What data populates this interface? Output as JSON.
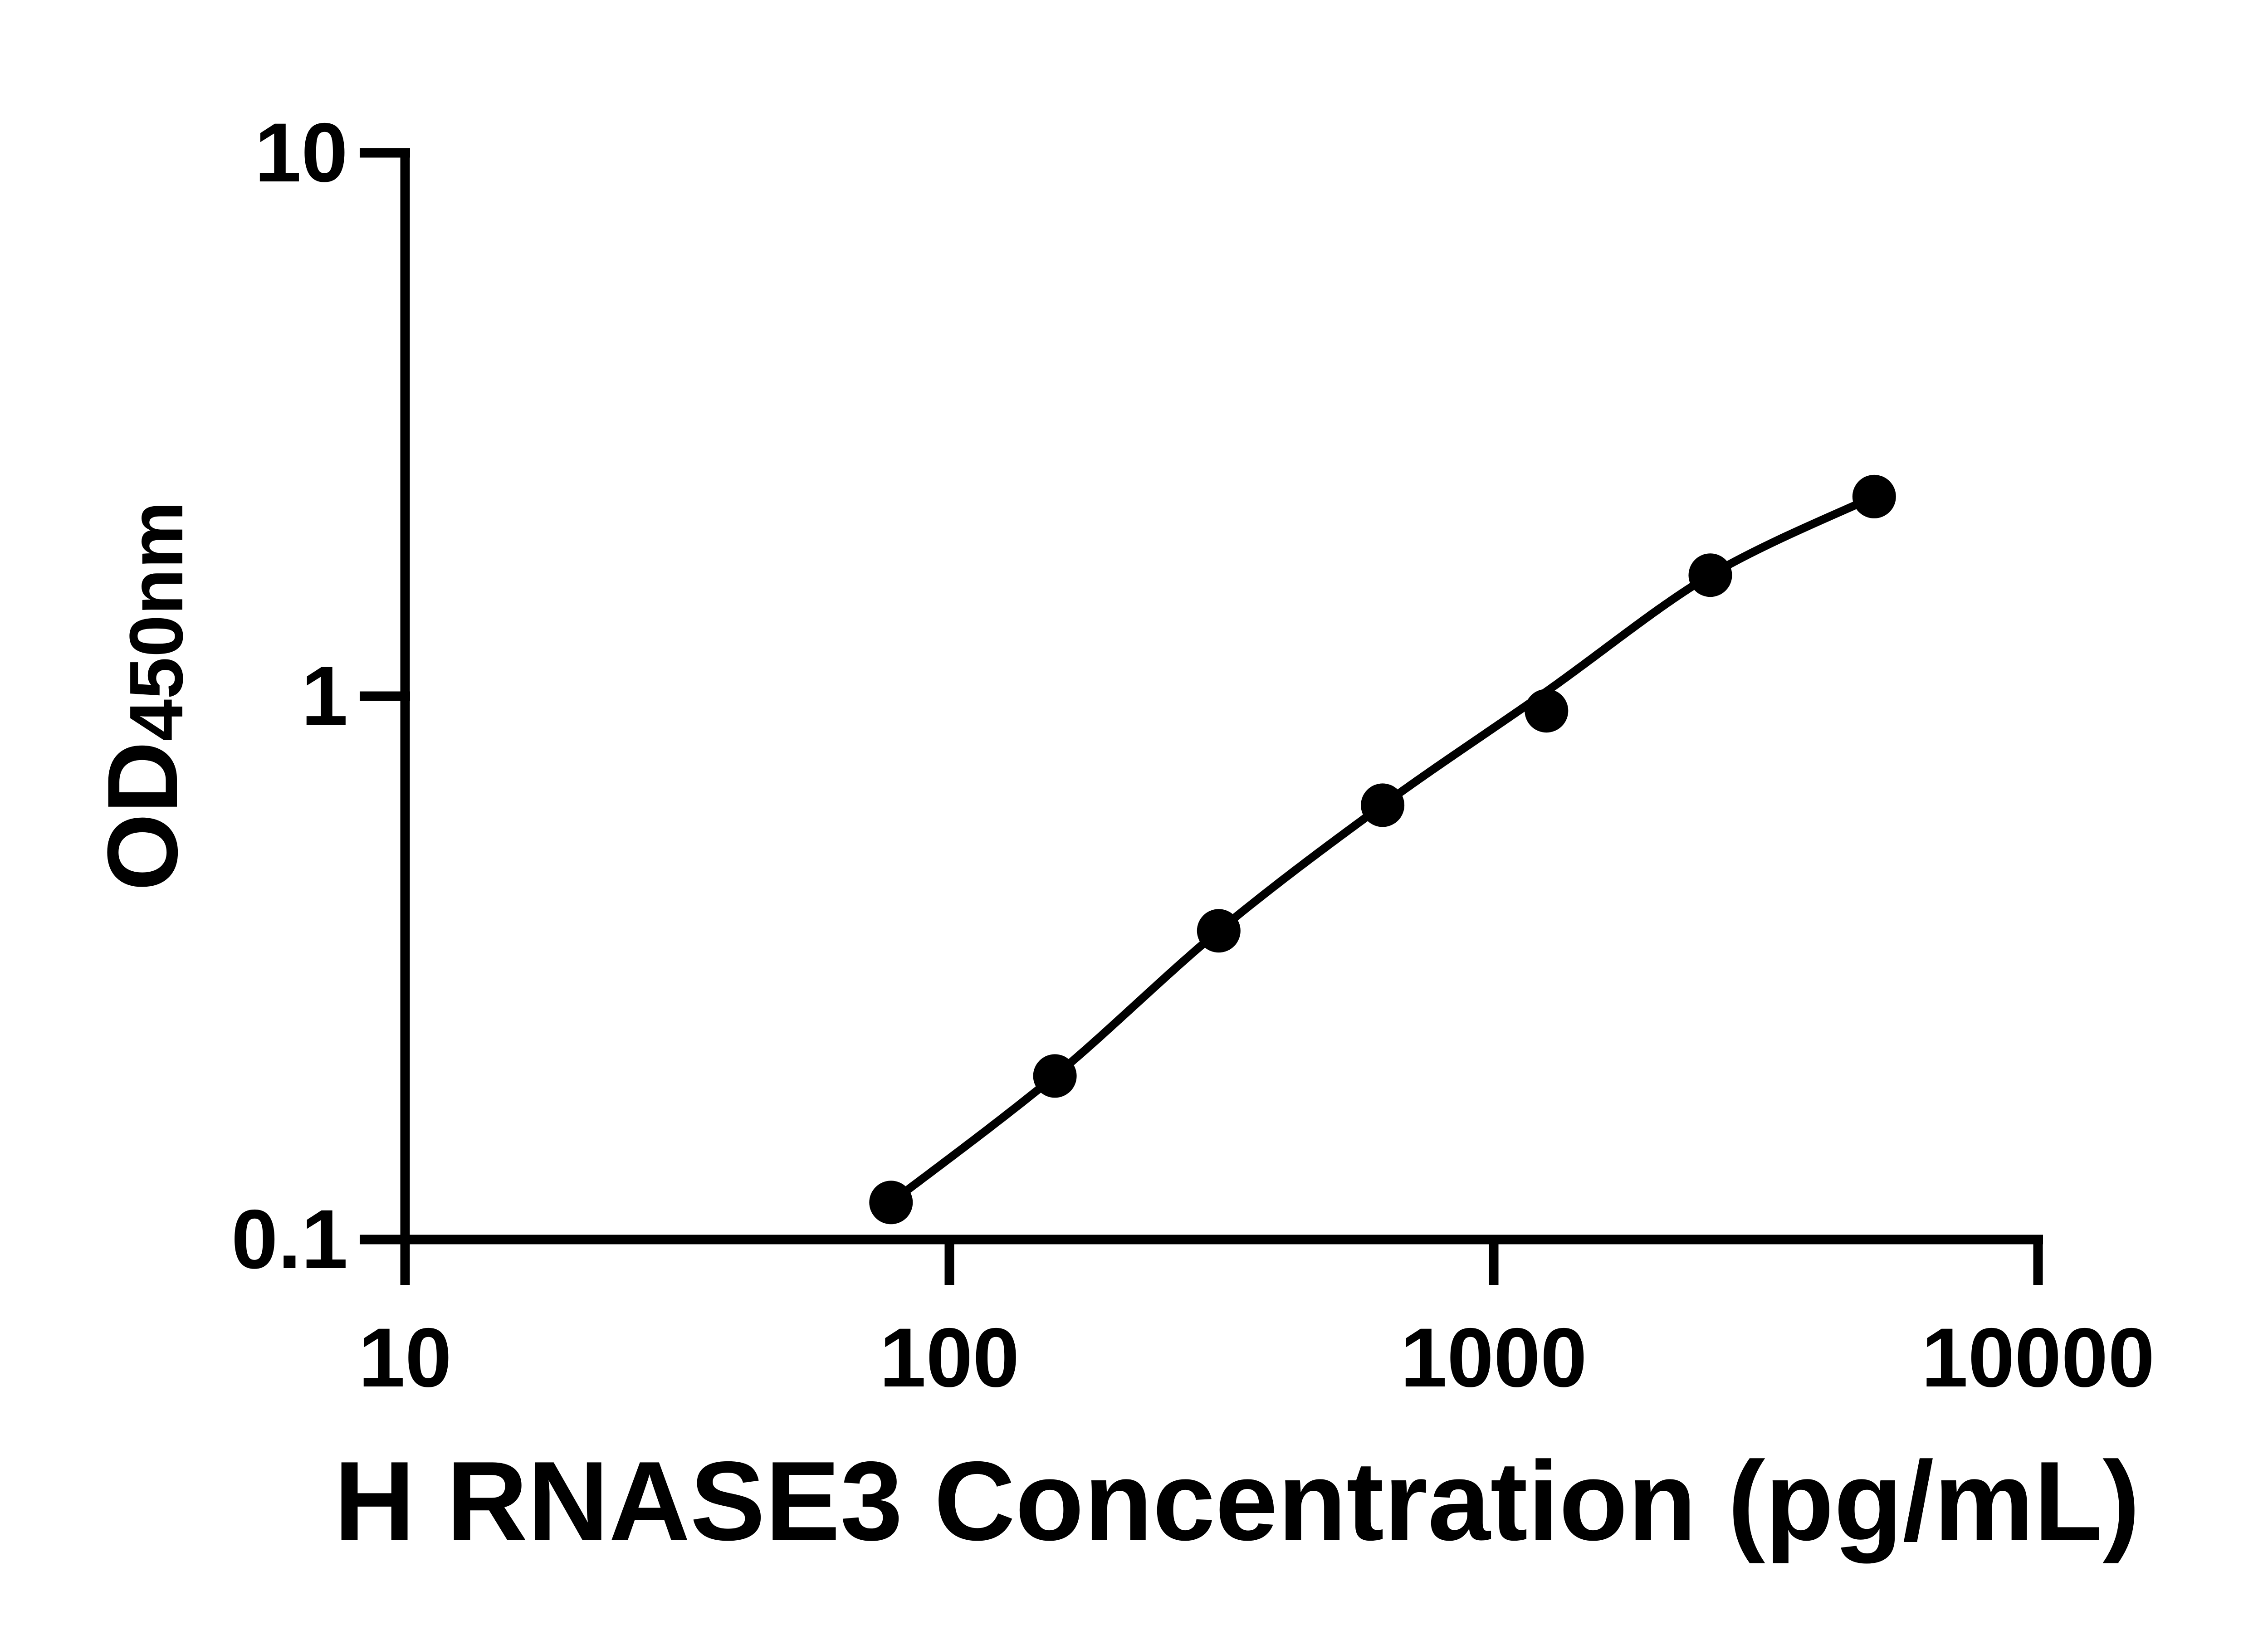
{
  "figure": {
    "background_color": "#ffffff",
    "ink_color": "#000000"
  },
  "chart_data": {
    "type": "scatter",
    "subtype": "elisa-standard-curve-with-fitted-line",
    "title": "",
    "xlabel": "H RNASE3 Concentration (pg/mL)",
    "ylabel": "OD450nm",
    "ylabel_main": "OD",
    "ylabel_sub": "450nm",
    "x_scale": "log10",
    "y_scale": "log10",
    "xlim": [
      10,
      10000
    ],
    "ylim": [
      0.1,
      10
    ],
    "x_ticks": [
      {
        "value": 10,
        "label": "10"
      },
      {
        "value": 100,
        "label": "100"
      },
      {
        "value": 1000,
        "label": "1000"
      },
      {
        "value": 10000,
        "label": "10000"
      }
    ],
    "y_ticks": [
      {
        "value": 0.1,
        "label": "0.1"
      },
      {
        "value": 1,
        "label": "1"
      },
      {
        "value": 10,
        "label": "10"
      }
    ],
    "grid": false,
    "legend": null,
    "series": [
      {
        "name": "standard-curve",
        "marker": "filled-circle",
        "color": "#000000",
        "points": [
          {
            "x": 78.125,
            "od": 0.117
          },
          {
            "x": 156.25,
            "od": 0.2
          },
          {
            "x": 312.5,
            "od": 0.37
          },
          {
            "x": 625,
            "od": 0.63
          },
          {
            "x": 1250,
            "od": 0.94
          },
          {
            "x": 2500,
            "od": 1.67
          },
          {
            "x": 5000,
            "od": 2.33
          }
        ],
        "fit_curve_od": [
          0.117,
          0.2,
          0.37,
          0.63,
          1.02,
          1.67,
          2.33
        ]
      }
    ]
  }
}
